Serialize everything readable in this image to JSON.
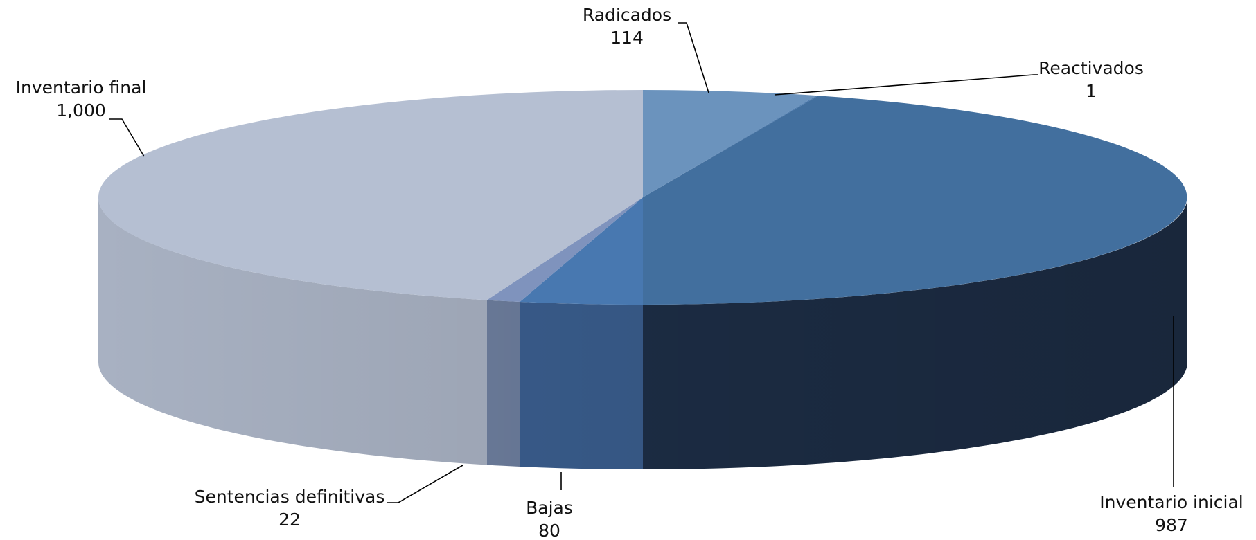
{
  "chart_data": {
    "type": "pie",
    "style": "3d-exploded-none",
    "title": "",
    "legend": "none",
    "slices": [
      {
        "label": "Radicados",
        "value": 114,
        "color": "#6b93bd",
        "side_color": "#5679a0"
      },
      {
        "label": "Reactivados",
        "value": 1,
        "color": "#4a79ad",
        "side_color": "#2e4d73"
      },
      {
        "label": "Inventario inicial",
        "value": 987,
        "color": "#426f9e",
        "side_color": "#1e2f48"
      },
      {
        "label": "Bajas",
        "value": 80,
        "color": "#4878b0",
        "side_color": "#3b5f90"
      },
      {
        "label": "Sentencias definitivas",
        "value": 22,
        "color": "#7f93bd",
        "side_color": "#6e7f9f"
      },
      {
        "label": "Inventario final",
        "value": 1000,
        "color": "#b5bfd2",
        "side_color": "#a8b1c2"
      }
    ],
    "value_labels": [
      "114",
      "1",
      "987",
      "80",
      "22",
      "1,000"
    ]
  }
}
